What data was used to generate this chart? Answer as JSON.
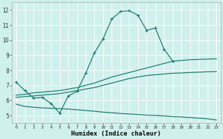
{
  "xlabel": "Humidex (Indice chaleur)",
  "background_color": "#cff0ec",
  "line_color": "#1a7a6e",
  "grid_color": "#ffffff",
  "xlim": [
    -0.5,
    23.5
  ],
  "ylim": [
    4.5,
    12.5
  ],
  "xticks": [
    0,
    1,
    2,
    3,
    4,
    5,
    6,
    7,
    8,
    9,
    10,
    11,
    12,
    13,
    14,
    15,
    16,
    17,
    18,
    19,
    20,
    21,
    22,
    23
  ],
  "yticks": [
    5,
    6,
    7,
    8,
    9,
    10,
    11,
    12
  ],
  "lines": [
    {
      "x": [
        0,
        1,
        2,
        3,
        4,
        5,
        6,
        7,
        8,
        9,
        10,
        11,
        12,
        13,
        14,
        15,
        16,
        17,
        18
      ],
      "y": [
        7.2,
        6.65,
        6.15,
        6.2,
        5.8,
        5.15,
        6.3,
        6.6,
        7.8,
        9.15,
        10.1,
        11.4,
        11.9,
        11.95,
        11.65,
        10.65,
        10.8,
        9.4,
        8.6
      ],
      "marker": true
    },
    {
      "x": [
        0,
        1,
        2,
        3,
        4,
        5,
        6,
        7,
        8,
        9,
        10,
        11,
        12,
        13,
        14,
        15,
        16,
        17,
        18,
        19,
        20,
        21,
        22,
        23
      ],
      "y": [
        6.35,
        6.4,
        6.5,
        6.55,
        6.6,
        6.65,
        6.75,
        6.85,
        7.0,
        7.15,
        7.35,
        7.55,
        7.7,
        7.85,
        8.0,
        8.15,
        8.3,
        8.45,
        8.6,
        8.65,
        8.7,
        8.72,
        8.74,
        8.76
      ],
      "marker": false
    },
    {
      "x": [
        0,
        1,
        2,
        3,
        4,
        5,
        6,
        7,
        8,
        9,
        10,
        11,
        12,
        13,
        14,
        15,
        16,
        17,
        18,
        19,
        20,
        21,
        22,
        23
      ],
      "y": [
        6.2,
        6.25,
        6.3,
        6.35,
        6.4,
        6.45,
        6.55,
        6.65,
        6.75,
        6.85,
        7.0,
        7.15,
        7.3,
        7.45,
        7.55,
        7.65,
        7.7,
        7.75,
        7.8,
        7.82,
        7.85,
        7.87,
        7.9,
        7.92
      ],
      "marker": false
    },
    {
      "x": [
        0,
        1,
        2,
        3,
        4,
        5,
        6,
        7,
        8,
        9,
        10,
        11,
        12,
        13,
        14,
        15,
        16,
        17,
        18,
        19,
        20,
        21,
        22,
        23
      ],
      "y": [
        5.75,
        5.6,
        5.55,
        5.5,
        5.48,
        5.45,
        5.42,
        5.38,
        5.33,
        5.28,
        5.22,
        5.18,
        5.13,
        5.1,
        5.06,
        5.02,
        5.0,
        4.97,
        4.93,
        4.9,
        4.86,
        4.82,
        4.78,
        4.7
      ],
      "marker": false
    }
  ]
}
